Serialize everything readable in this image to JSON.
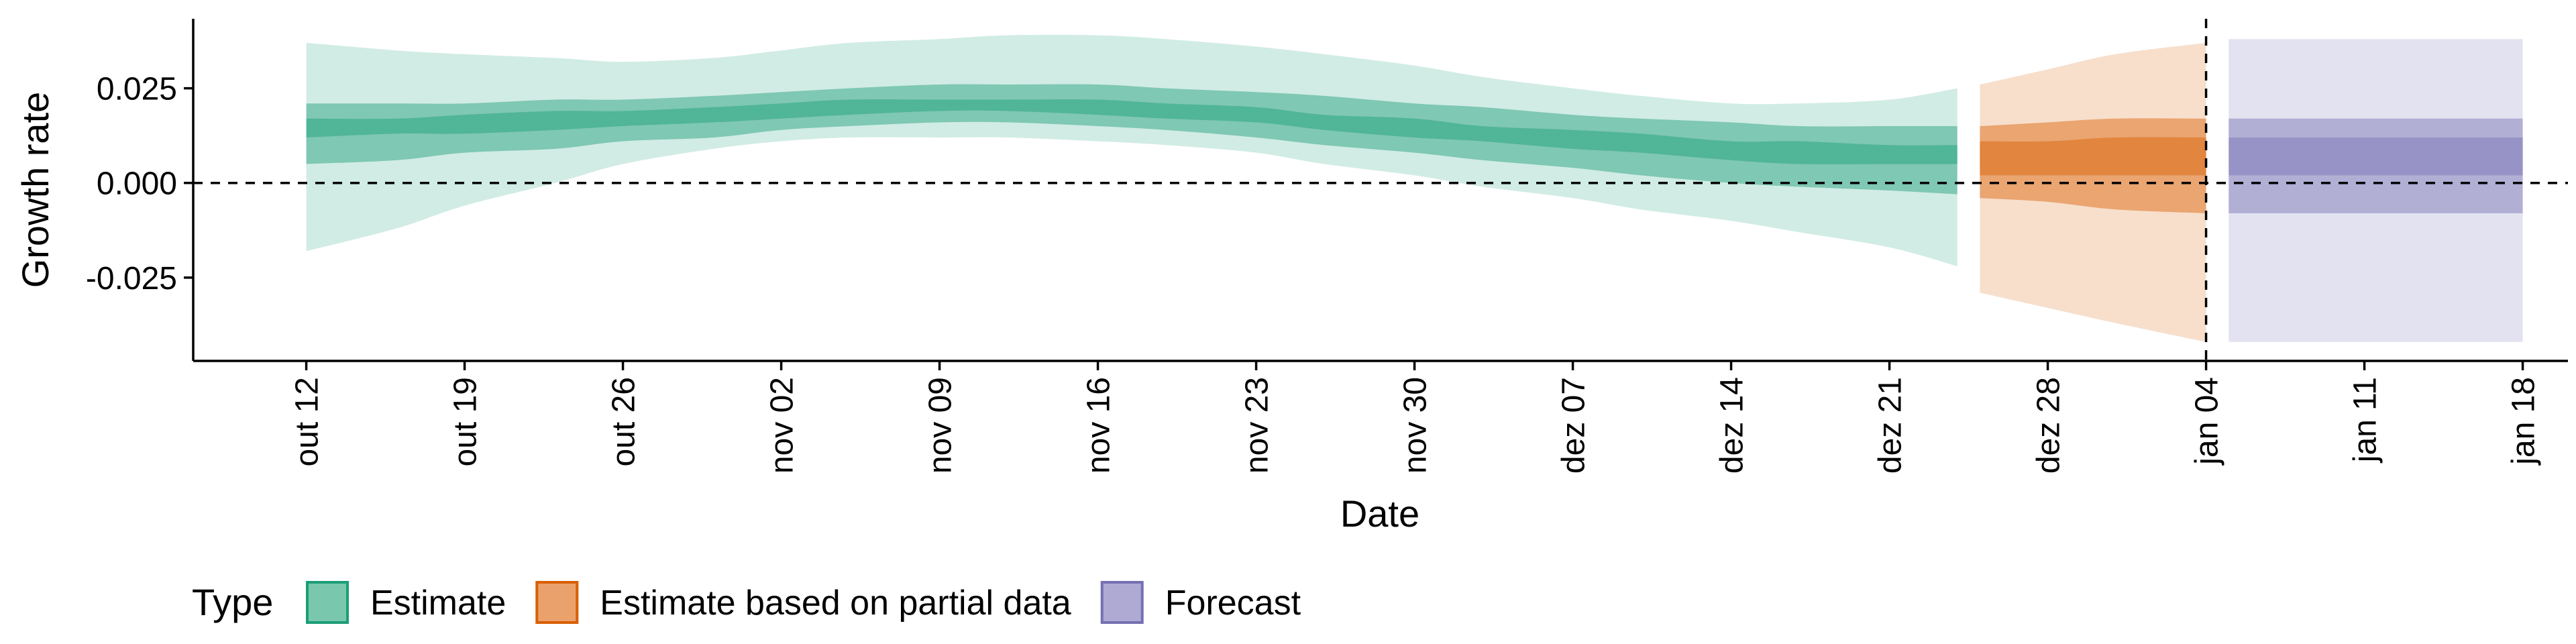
{
  "chart_data": {
    "type": "area",
    "xlabel": "Date",
    "ylabel": "Growth rate",
    "ylim": [
      -0.047,
      0.043
    ],
    "xlim": [
      "2020-10-07",
      "2021-01-20"
    ],
    "y_ticks": [
      {
        "value": 0.025,
        "label": "0.025"
      },
      {
        "value": 0.0,
        "label": "0.000"
      },
      {
        "value": -0.025,
        "label": "-0.025"
      }
    ],
    "x_ticks": [
      {
        "date": "2020-10-12",
        "label": "out 12"
      },
      {
        "date": "2020-10-19",
        "label": "out 19"
      },
      {
        "date": "2020-10-26",
        "label": "out 26"
      },
      {
        "date": "2020-11-02",
        "label": "nov 02"
      },
      {
        "date": "2020-11-09",
        "label": "nov 09"
      },
      {
        "date": "2020-11-16",
        "label": "nov 16"
      },
      {
        "date": "2020-11-23",
        "label": "nov 23"
      },
      {
        "date": "2020-11-30",
        "label": "nov 30"
      },
      {
        "date": "2020-12-07",
        "label": "dez 07"
      },
      {
        "date": "2020-12-14",
        "label": "dez 14"
      },
      {
        "date": "2020-12-21",
        "label": "dez 21"
      },
      {
        "date": "2020-12-28",
        "label": "dez 28"
      },
      {
        "date": "2021-01-04",
        "label": "jan 04"
      },
      {
        "date": "2021-01-11",
        "label": "jan 11"
      },
      {
        "date": "2021-01-18",
        "label": "jan 18"
      }
    ],
    "reference_lines": {
      "horizontal_y": 0.0,
      "vertical_x": "2021-01-04"
    },
    "legend": {
      "title": "Type",
      "position": "bottom",
      "items": [
        {
          "label": "Estimate",
          "fill": "#79c8ad",
          "border": "#1b9e77"
        },
        {
          "label": "Estimate based on partial data",
          "fill": "#eba16c",
          "border": "#d95f02"
        },
        {
          "label": "Forecast",
          "fill": "#aeaad3",
          "border": "#7570b3"
        }
      ]
    },
    "series": [
      {
        "name": "Estimate",
        "color": "#1b9e77",
        "x": [
          "2020-10-12",
          "2020-10-16",
          "2020-10-19",
          "2020-10-23",
          "2020-10-26",
          "2020-10-30",
          "2020-11-02",
          "2020-11-05",
          "2020-11-09",
          "2020-11-12",
          "2020-11-16",
          "2020-11-19",
          "2020-11-23",
          "2020-11-26",
          "2020-11-30",
          "2020-12-03",
          "2020-12-07",
          "2020-12-10",
          "2020-12-14",
          "2020-12-17",
          "2020-12-21",
          "2020-12-24"
        ],
        "lower90": [
          -0.018,
          -0.012,
          -0.006,
          0.0,
          0.005,
          0.009,
          0.011,
          0.012,
          0.012,
          0.012,
          0.011,
          0.01,
          0.008,
          0.005,
          0.002,
          -0.001,
          -0.004,
          -0.007,
          -0.01,
          -0.013,
          -0.017,
          -0.022
        ],
        "upper90": [
          0.037,
          0.035,
          0.034,
          0.033,
          0.032,
          0.033,
          0.035,
          0.037,
          0.038,
          0.039,
          0.039,
          0.038,
          0.036,
          0.034,
          0.031,
          0.028,
          0.025,
          0.023,
          0.021,
          0.021,
          0.022,
          0.025
        ],
        "lower50": [
          0.005,
          0.006,
          0.008,
          0.009,
          0.011,
          0.012,
          0.014,
          0.015,
          0.016,
          0.016,
          0.015,
          0.014,
          0.012,
          0.01,
          0.008,
          0.006,
          0.004,
          0.002,
          0.0,
          -0.001,
          -0.002,
          -0.003
        ],
        "upper50": [
          0.021,
          0.021,
          0.021,
          0.022,
          0.022,
          0.023,
          0.024,
          0.025,
          0.026,
          0.026,
          0.026,
          0.025,
          0.024,
          0.023,
          0.021,
          0.02,
          0.018,
          0.017,
          0.016,
          0.015,
          0.015,
          0.015
        ],
        "lower20": [
          0.012,
          0.013,
          0.013,
          0.014,
          0.015,
          0.016,
          0.017,
          0.018,
          0.019,
          0.019,
          0.018,
          0.017,
          0.016,
          0.014,
          0.012,
          0.011,
          0.009,
          0.008,
          0.006,
          0.005,
          0.005,
          0.005
        ],
        "upper20": [
          0.017,
          0.017,
          0.018,
          0.019,
          0.019,
          0.02,
          0.021,
          0.022,
          0.022,
          0.022,
          0.022,
          0.021,
          0.02,
          0.018,
          0.017,
          0.015,
          0.014,
          0.013,
          0.011,
          0.011,
          0.01,
          0.01
        ]
      },
      {
        "name": "Estimate based on partial data",
        "color": "#d95f02",
        "x": [
          "2020-12-25",
          "2020-12-28",
          "2020-12-31",
          "2021-01-04"
        ],
        "lower90": [
          -0.029,
          -0.033,
          -0.037,
          -0.042
        ],
        "upper90": [
          0.026,
          0.03,
          0.034,
          0.037
        ],
        "lower50": [
          -0.004,
          -0.005,
          -0.007,
          -0.008
        ],
        "upper50": [
          0.015,
          0.016,
          0.017,
          0.017
        ],
        "lower20": [
          0.002,
          0.002,
          0.002,
          0.002
        ],
        "upper20": [
          0.011,
          0.011,
          0.012,
          0.012
        ]
      },
      {
        "name": "Forecast",
        "color": "#7570b3",
        "x": [
          "2021-01-05",
          "2021-01-18"
        ],
        "lower90": [
          -0.042,
          -0.042
        ],
        "upper90": [
          0.038,
          0.038
        ],
        "lower50": [
          -0.008,
          -0.008
        ],
        "upper50": [
          0.017,
          0.017
        ],
        "lower20": [
          0.002,
          0.002
        ],
        "upper20": [
          0.012,
          0.012
        ]
      }
    ]
  }
}
